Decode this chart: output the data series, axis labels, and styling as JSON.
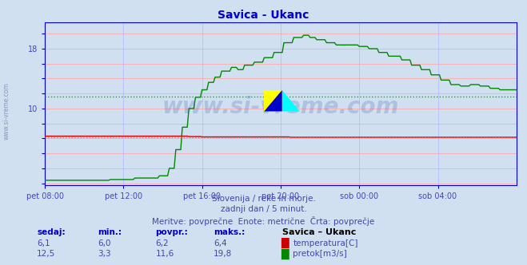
{
  "title": "Savica - Ukanc",
  "title_color": "#0000cc",
  "bg_color": "#d0e0f0",
  "plot_bg_color": "#d0e0f0",
  "grid_color_h": "#ffaaaa",
  "grid_color_v": "#bbbbff",
  "xlabel_color": "#4444bb",
  "text_color": "#4444aa",
  "watermark": "www.si-vreme.com",
  "subtitle1": "Slovenija / reke in morje.",
  "subtitle2": "zadnji dan / 5 minut.",
  "subtitle3": "Meritve: povprečne  Enote: metrične  Črta: povprečje",
  "ytick_labels": [
    "",
    "10",
    "",
    "18",
    ""
  ],
  "ytick_values": [
    0,
    10,
    14,
    18,
    21
  ],
  "ylim": [
    -0.3,
    21.5
  ],
  "ylines": [
    0,
    2,
    4,
    6,
    8,
    10,
    12,
    14,
    16,
    18,
    20
  ],
  "xtick_labels": [
    "pet 08:00",
    "pet 12:00",
    "pet 16:00",
    "pet 20:00",
    "sob 00:00",
    "sob 04:00"
  ],
  "xtick_positions": [
    0,
    48,
    96,
    144,
    192,
    240
  ],
  "total_points": 289,
  "temp_color": "#cc0000",
  "flow_color": "#008800",
  "avg_temp_color": "#ff6666",
  "avg_flow_color": "#00bb00",
  "avg_temp_value": 6.2,
  "avg_flow_value": 11.6,
  "border_color": "#0000cc",
  "legend_title": "Savica – Ukanc",
  "legend_temp_label": "temperatura[C]",
  "legend_flow_label": "pretok[m3/s]",
  "stats_headers": [
    "sedaj:",
    "min.:",
    "povpr.:",
    "maks.:"
  ],
  "stats_temp": [
    "6,1",
    "6,0",
    "6,2",
    "6,4"
  ],
  "stats_flow": [
    "12,5",
    "3,3",
    "11,6",
    "19,8"
  ]
}
